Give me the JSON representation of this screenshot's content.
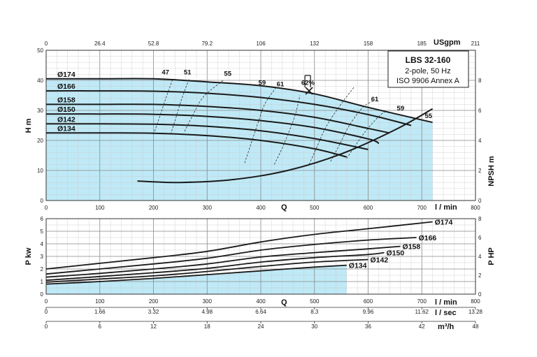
{
  "chart_data": {
    "type": "line",
    "title": "LBS 32-160",
    "title_lines": [
      "2-pole, 50 Hz",
      "ISO 9906 Annex A"
    ],
    "x_axes": {
      "q_lmin": {
        "label": "l / min",
        "symbol": "Q",
        "ticks": [
          "0",
          "100",
          "200",
          "300",
          "400",
          "500",
          "600",
          "700",
          "800"
        ],
        "range": [
          0,
          800
        ]
      },
      "us_gpm": {
        "label": "USgpm",
        "ticks": [
          "0",
          "26.4",
          "52.8",
          "79.2",
          "106",
          "132",
          "158",
          "185",
          "211"
        ]
      },
      "l_sec": {
        "label": "l / sec",
        "symbol": "Q",
        "ticks": [
          "0",
          "1.66",
          "3.32",
          "4.98",
          "6.64",
          "8.3",
          "9.96",
          "11.62",
          "13.28"
        ]
      },
      "m3h": {
        "label": "m³/h",
        "ticks": [
          "0",
          "6",
          "12",
          "18",
          "24",
          "30",
          "36",
          "42",
          "48"
        ]
      }
    },
    "head_chart": {
      "ylabel": "H m",
      "ylim": [
        0,
        50
      ],
      "yticks": [
        "0",
        "10",
        "20",
        "30",
        "40",
        "50"
      ],
      "y2label": "NPSH m",
      "y2lim": [
        0,
        10
      ],
      "y2ticks": [
        "0",
        "2",
        "4",
        "6",
        "8"
      ],
      "series": [
        {
          "name": "Ø174",
          "x": [
            0,
            100,
            200,
            300,
            400,
            500,
            600,
            720
          ],
          "y": [
            40.5,
            40.5,
            40.5,
            39.5,
            38.2,
            35.5,
            31,
            26
          ]
        },
        {
          "name": "Ø166",
          "x": [
            0,
            100,
            200,
            300,
            400,
            500,
            600,
            680
          ],
          "y": [
            36.5,
            36.5,
            36.4,
            35.7,
            34.3,
            32,
            28.6,
            25
          ]
        },
        {
          "name": "Ø158",
          "x": [
            0,
            100,
            200,
            300,
            400,
            500,
            600,
            640
          ],
          "y": [
            32,
            32,
            32,
            31.3,
            30,
            27.7,
            24,
            22.5
          ]
        },
        {
          "name": "Ø150",
          "x": [
            0,
            100,
            200,
            300,
            400,
            500,
            600,
            620
          ],
          "y": [
            28.8,
            28.8,
            28.7,
            28,
            26.6,
            24.3,
            20.5,
            19
          ]
        },
        {
          "name": "Ø142",
          "x": [
            0,
            100,
            200,
            300,
            400,
            500,
            600
          ],
          "y": [
            25.5,
            25.5,
            25.4,
            24.7,
            23.2,
            20.6,
            17
          ]
        },
        {
          "name": "Ø134",
          "x": [
            0,
            100,
            200,
            300,
            400,
            500,
            560
          ],
          "y": [
            22.5,
            22.5,
            22.4,
            21.6,
            20,
            17.2,
            14.5
          ]
        }
      ],
      "npsh": {
        "x": [
          170,
          250,
          350,
          450,
          550,
          650,
          720
        ],
        "y": [
          1.3,
          1.2,
          1.4,
          2.0,
          3.1,
          4.7,
          6.1
        ]
      },
      "efficiency_labels": [
        "47",
        "51",
        "55",
        "59",
        "61",
        "62%",
        "61",
        "59",
        "55"
      ],
      "bep": {
        "x": 490,
        "y": 36.5
      }
    },
    "power_chart": {
      "ylabel": "P kw",
      "ylim": [
        0,
        6
      ],
      "yticks": [
        "0",
        "1",
        "2",
        "3",
        "4",
        "5",
        "6"
      ],
      "y2label": "P HP",
      "y2lim": [
        0,
        8
      ],
      "y2ticks": [
        "0",
        "2",
        "4",
        "6",
        "8"
      ],
      "series": [
        {
          "name": "Ø174",
          "x": [
            0,
            100,
            200,
            300,
            400,
            500,
            600,
            720
          ],
          "y": [
            2.0,
            2.45,
            2.9,
            3.4,
            4.15,
            4.75,
            5.2,
            5.75
          ]
        },
        {
          "name": "Ø166",
          "x": [
            0,
            100,
            200,
            300,
            400,
            500,
            600,
            690
          ],
          "y": [
            1.6,
            2.0,
            2.4,
            2.85,
            3.5,
            3.95,
            4.3,
            4.5
          ]
        },
        {
          "name": "Ø158",
          "x": [
            0,
            100,
            200,
            300,
            400,
            500,
            600,
            660
          ],
          "y": [
            1.35,
            1.65,
            2.0,
            2.4,
            2.95,
            3.3,
            3.6,
            3.8
          ]
        },
        {
          "name": "Ø150",
          "x": [
            0,
            100,
            200,
            300,
            400,
            500,
            600,
            630
          ],
          "y": [
            1.1,
            1.4,
            1.7,
            2.05,
            2.55,
            2.9,
            3.15,
            3.3
          ]
        },
        {
          "name": "Ø142",
          "x": [
            0,
            100,
            200,
            300,
            400,
            500,
            600
          ],
          "y": [
            0.95,
            1.2,
            1.45,
            1.8,
            2.2,
            2.55,
            2.75
          ]
        },
        {
          "name": "Ø134",
          "x": [
            0,
            100,
            200,
            300,
            400,
            500,
            560
          ],
          "y": [
            0.8,
            1.0,
            1.25,
            1.55,
            1.85,
            2.15,
            2.3
          ]
        }
      ]
    }
  }
}
